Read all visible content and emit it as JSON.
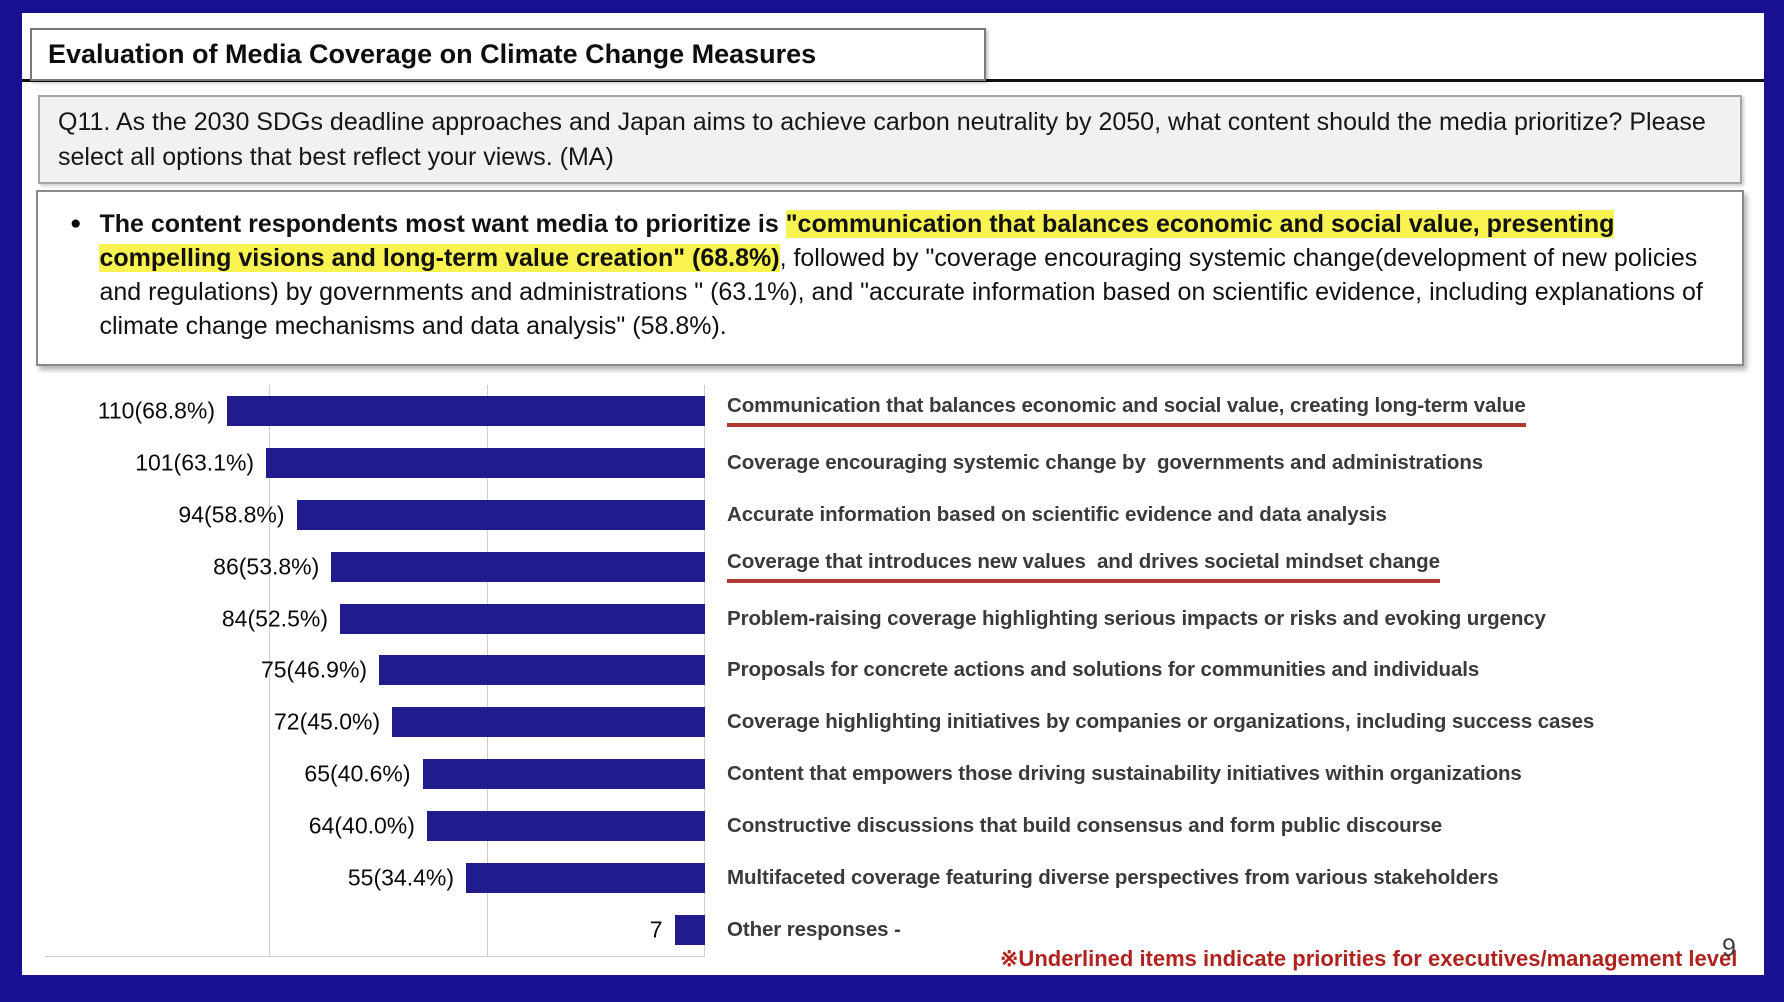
{
  "slide": {
    "title": "Evaluation of Media Coverage on Climate Change Measures",
    "question": "Q11. As the 2030 SDGs deadline approaches and Japan aims to achieve carbon neutrality by 2050, what content should the media prioritize? Please select all options that best reflect your views. (MA)",
    "bullet": "●",
    "summary_runs": [
      {
        "text": "The content respondents most want media to prioritize is ",
        "bold": true,
        "highlight": false
      },
      {
        "text": "\"communication that balances economic and social value, presenting compelling visions and long-term value creation\" (68.8%)",
        "bold": true,
        "highlight": true
      },
      {
        "text": ", followed by \"coverage encouraging systemic change(development of new policies and regulations) by governments and administrations \" (63.1%), and \"accurate information based on scientific evidence, including explanations of climate change mechanisms and data analysis\" (58.8%).",
        "bold": false,
        "highlight": false
      }
    ],
    "footnote": "※Underlined items indicate priorities for executives/management level",
    "page_number": "9",
    "colors": {
      "frame": "#181090",
      "bar": "#201c8e",
      "highlight": "#f9f351",
      "underline": "#b03a30",
      "footnote": "#af221e"
    }
  },
  "chart_data": {
    "type": "bar",
    "orientation": "horizontal, bars anchored at right, values increase leftward",
    "value_axis": {
      "min": 0,
      "max": 110,
      "gridline_values": [
        0,
        50,
        100
      ],
      "grid": true
    },
    "legend": "none",
    "bars": [
      {
        "value": 110,
        "value_label": "110(68.8%)",
        "category": "Communication that balances economic and social value, creating long-term value",
        "underlined": true
      },
      {
        "value": 101,
        "value_label": "101(63.1%)",
        "category": "Coverage encouraging systemic change by  governments and administrations",
        "underlined": false
      },
      {
        "value": 94,
        "value_label": "94(58.8%)",
        "category": "Accurate information based on scientific evidence and data analysis",
        "underlined": false
      },
      {
        "value": 86,
        "value_label": "86(53.8%)",
        "category": "Coverage that introduces new values  and drives societal mindset change",
        "underlined": true
      },
      {
        "value": 84,
        "value_label": "84(52.5%)",
        "category": "Problem-raising coverage highlighting serious impacts or risks and evoking urgency",
        "underlined": false
      },
      {
        "value": 75,
        "value_label": "75(46.9%)",
        "category": "Proposals for concrete actions and solutions for communities and individuals",
        "underlined": false
      },
      {
        "value": 72,
        "value_label": "72(45.0%)",
        "category": "Coverage highlighting initiatives by companies or organizations, including success cases",
        "underlined": false
      },
      {
        "value": 65,
        "value_label": "65(40.6%)",
        "category": "Content that empowers those driving sustainability initiatives within organizations",
        "underlined": false
      },
      {
        "value": 64,
        "value_label": "64(40.0%)",
        "category": "Constructive discussions that build consensus and form public discourse",
        "underlined": false
      },
      {
        "value": 55,
        "value_label": "55(34.4%)",
        "category": "Multifaceted coverage featuring diverse perspectives from various stakeholders",
        "underlined": false
      },
      {
        "value": 7,
        "value_label": "7",
        "category": "Other responses -",
        "underlined": false
      }
    ]
  }
}
